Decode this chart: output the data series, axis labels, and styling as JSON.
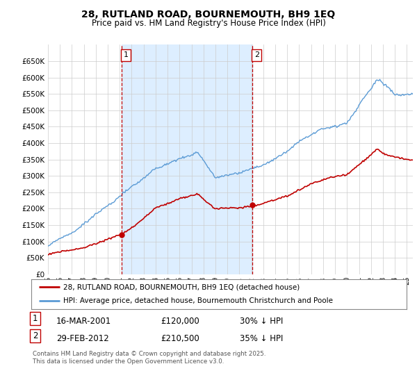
{
  "title_line1": "28, RUTLAND ROAD, BOURNEMOUTH, BH9 1EQ",
  "title_line2": "Price paid vs. HM Land Registry's House Price Index (HPI)",
  "legend_line1": "28, RUTLAND ROAD, BOURNEMOUTH, BH9 1EQ (detached house)",
  "legend_line2": "HPI: Average price, detached house, Bournemouth Christchurch and Poole",
  "footnote": "Contains HM Land Registry data © Crown copyright and database right 2025.\nThis data is licensed under the Open Government Licence v3.0.",
  "annotation1_label": "1",
  "annotation1_date": "16-MAR-2001",
  "annotation1_price": "£120,000",
  "annotation1_hpi": "30% ↓ HPI",
  "annotation2_label": "2",
  "annotation2_date": "29-FEB-2012",
  "annotation2_price": "£210,500",
  "annotation2_hpi": "35% ↓ HPI",
  "hpi_color": "#5b9bd5",
  "price_color": "#c00000",
  "annotation_color": "#c00000",
  "shade_color": "#ddeeff",
  "ylim": [
    0,
    700000
  ],
  "yticks": [
    0,
    50000,
    100000,
    150000,
    200000,
    250000,
    300000,
    350000,
    400000,
    450000,
    500000,
    550000,
    600000,
    650000
  ],
  "background_color": "#ffffff",
  "grid_color": "#cccccc"
}
